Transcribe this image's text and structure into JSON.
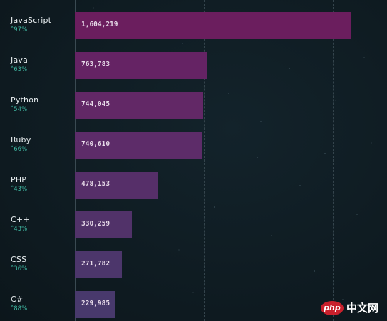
{
  "chart_data": {
    "type": "bar",
    "orientation": "horizontal",
    "categories": [
      "JavaScript",
      "Java",
      "Python",
      "Ruby",
      "PHP",
      "C++",
      "CSS",
      "C#"
    ],
    "values": [
      1604219,
      763783,
      744045,
      740610,
      478153,
      330259,
      271782,
      229985
    ],
    "value_labels": [
      "1,604,219",
      "763,783",
      "744,045",
      "740,610",
      "478,153",
      "330,259",
      "271,782",
      "229,985"
    ],
    "growth_labels": [
      "˄97%",
      "˄63%",
      "˄54%",
      "˄66%",
      "˄43%",
      "˄43%",
      "˄36%",
      "˄88%"
    ],
    "xlim": [
      0,
      1604219
    ],
    "grid": true,
    "bar_colors": [
      "#6b1e5e",
      "#652364",
      "#622866",
      "#5d2c69",
      "#562f69",
      "#513269",
      "#4c366b",
      "#48396c"
    ],
    "growth_color": "#3fb7a2",
    "background_color": "#0f1b22"
  },
  "watermark": {
    "logo_text": "php",
    "site_text": "中文网"
  }
}
